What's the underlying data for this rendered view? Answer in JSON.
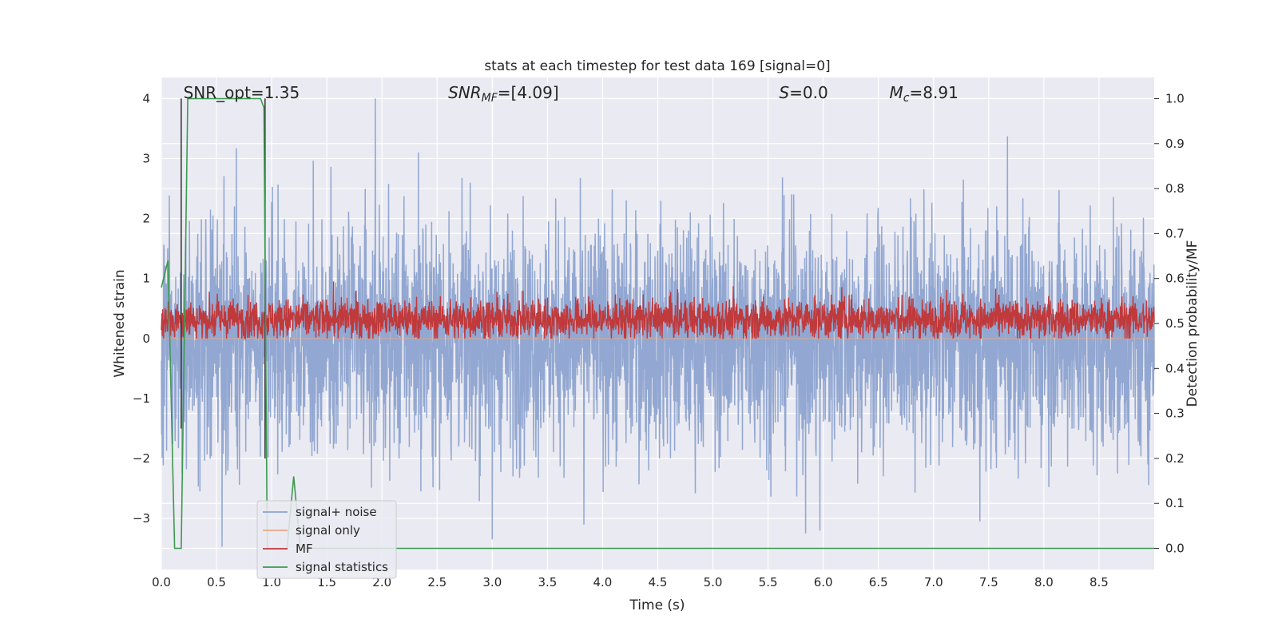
{
  "chart_data": {
    "type": "line",
    "title": "stats at each timestep for test data 169 [signal=0]",
    "xlabel": "Time (s)",
    "ylabel_left": "Whitened strain",
    "ylabel_right": "Detection probability/MF",
    "xlim": [
      0.0,
      9.0
    ],
    "ylim_left": [
      -3.85,
      4.35
    ],
    "ylim_right": [
      -0.047,
      1.047
    ],
    "x_ticks": [
      "0.0",
      "0.5",
      "1.0",
      "1.5",
      "2.0",
      "2.5",
      "3.0",
      "3.5",
      "4.0",
      "4.5",
      "5.0",
      "5.5",
      "6.0",
      "6.5",
      "7.0",
      "7.5",
      "8.0",
      "8.5"
    ],
    "y_ticks_left": [
      "−3",
      "−2",
      "−1",
      "0",
      "1",
      "2",
      "3",
      "4"
    ],
    "y_ticks_right": [
      "0.0",
      "0.1",
      "0.2",
      "0.3",
      "0.4",
      "0.5",
      "0.6",
      "0.7",
      "0.8",
      "0.9",
      "1.0"
    ],
    "grid": true,
    "legend_position": "lower-left",
    "annotations": [
      {
        "text": "SNR_opt=1.35",
        "x": 0.2
      },
      {
        "text": "SNR_MF=[4.09]",
        "x": 2.6
      },
      {
        "text": "S=0.0",
        "x": 5.6
      },
      {
        "text": "M_c=8.91",
        "x": 6.6
      }
    ],
    "series": [
      {
        "name": "signal+ noise",
        "color": "#8da3cf",
        "axis": "left",
        "kind": "noise",
        "approx_range": [
          -3.5,
          4.0
        ],
        "peaks": [
          [
            0.55,
            -3.47
          ],
          [
            0.68,
            3.17
          ],
          [
            1.94,
            4.0
          ],
          [
            2.33,
            3.1
          ],
          [
            3.0,
            -3.35
          ],
          [
            3.83,
            -3.1
          ],
          [
            7.42,
            -3.05
          ],
          [
            7.67,
            3.37
          ],
          [
            5.84,
            -3.25
          ],
          [
            5.97,
            -3.2
          ]
        ]
      },
      {
        "name": "signal only",
        "color": "#e9a887",
        "axis": "left",
        "kind": "flat",
        "value": 0
      },
      {
        "name": "MF",
        "color": "#c0393b",
        "axis": "left",
        "kind": "noise",
        "approx_range": [
          0.0,
          0.95
        ]
      },
      {
        "name": "signal statistics",
        "color": "#3d9a4e",
        "axis": "right",
        "kind": "line",
        "x": [
          0.0,
          0.06,
          0.12,
          0.18,
          0.24,
          0.3,
          0.9,
          0.93,
          0.96,
          1.02,
          1.08,
          1.14,
          1.2,
          1.26,
          1.32,
          9.0
        ],
        "y": [
          0.58,
          0.64,
          0.0,
          0.0,
          1.0,
          1.0,
          1.0,
          0.98,
          0.0,
          0.0,
          0.0,
          0.0,
          0.16,
          0.0,
          0.0,
          0.0
        ]
      }
    ],
    "markers": [
      {
        "x": 0.18,
        "y_left": [
          -1.5,
          4.0
        ],
        "color": "#333333"
      },
      {
        "x": 0.94,
        "y_left": [
          -2.0,
          4.0
        ],
        "color": "#333333"
      }
    ]
  }
}
